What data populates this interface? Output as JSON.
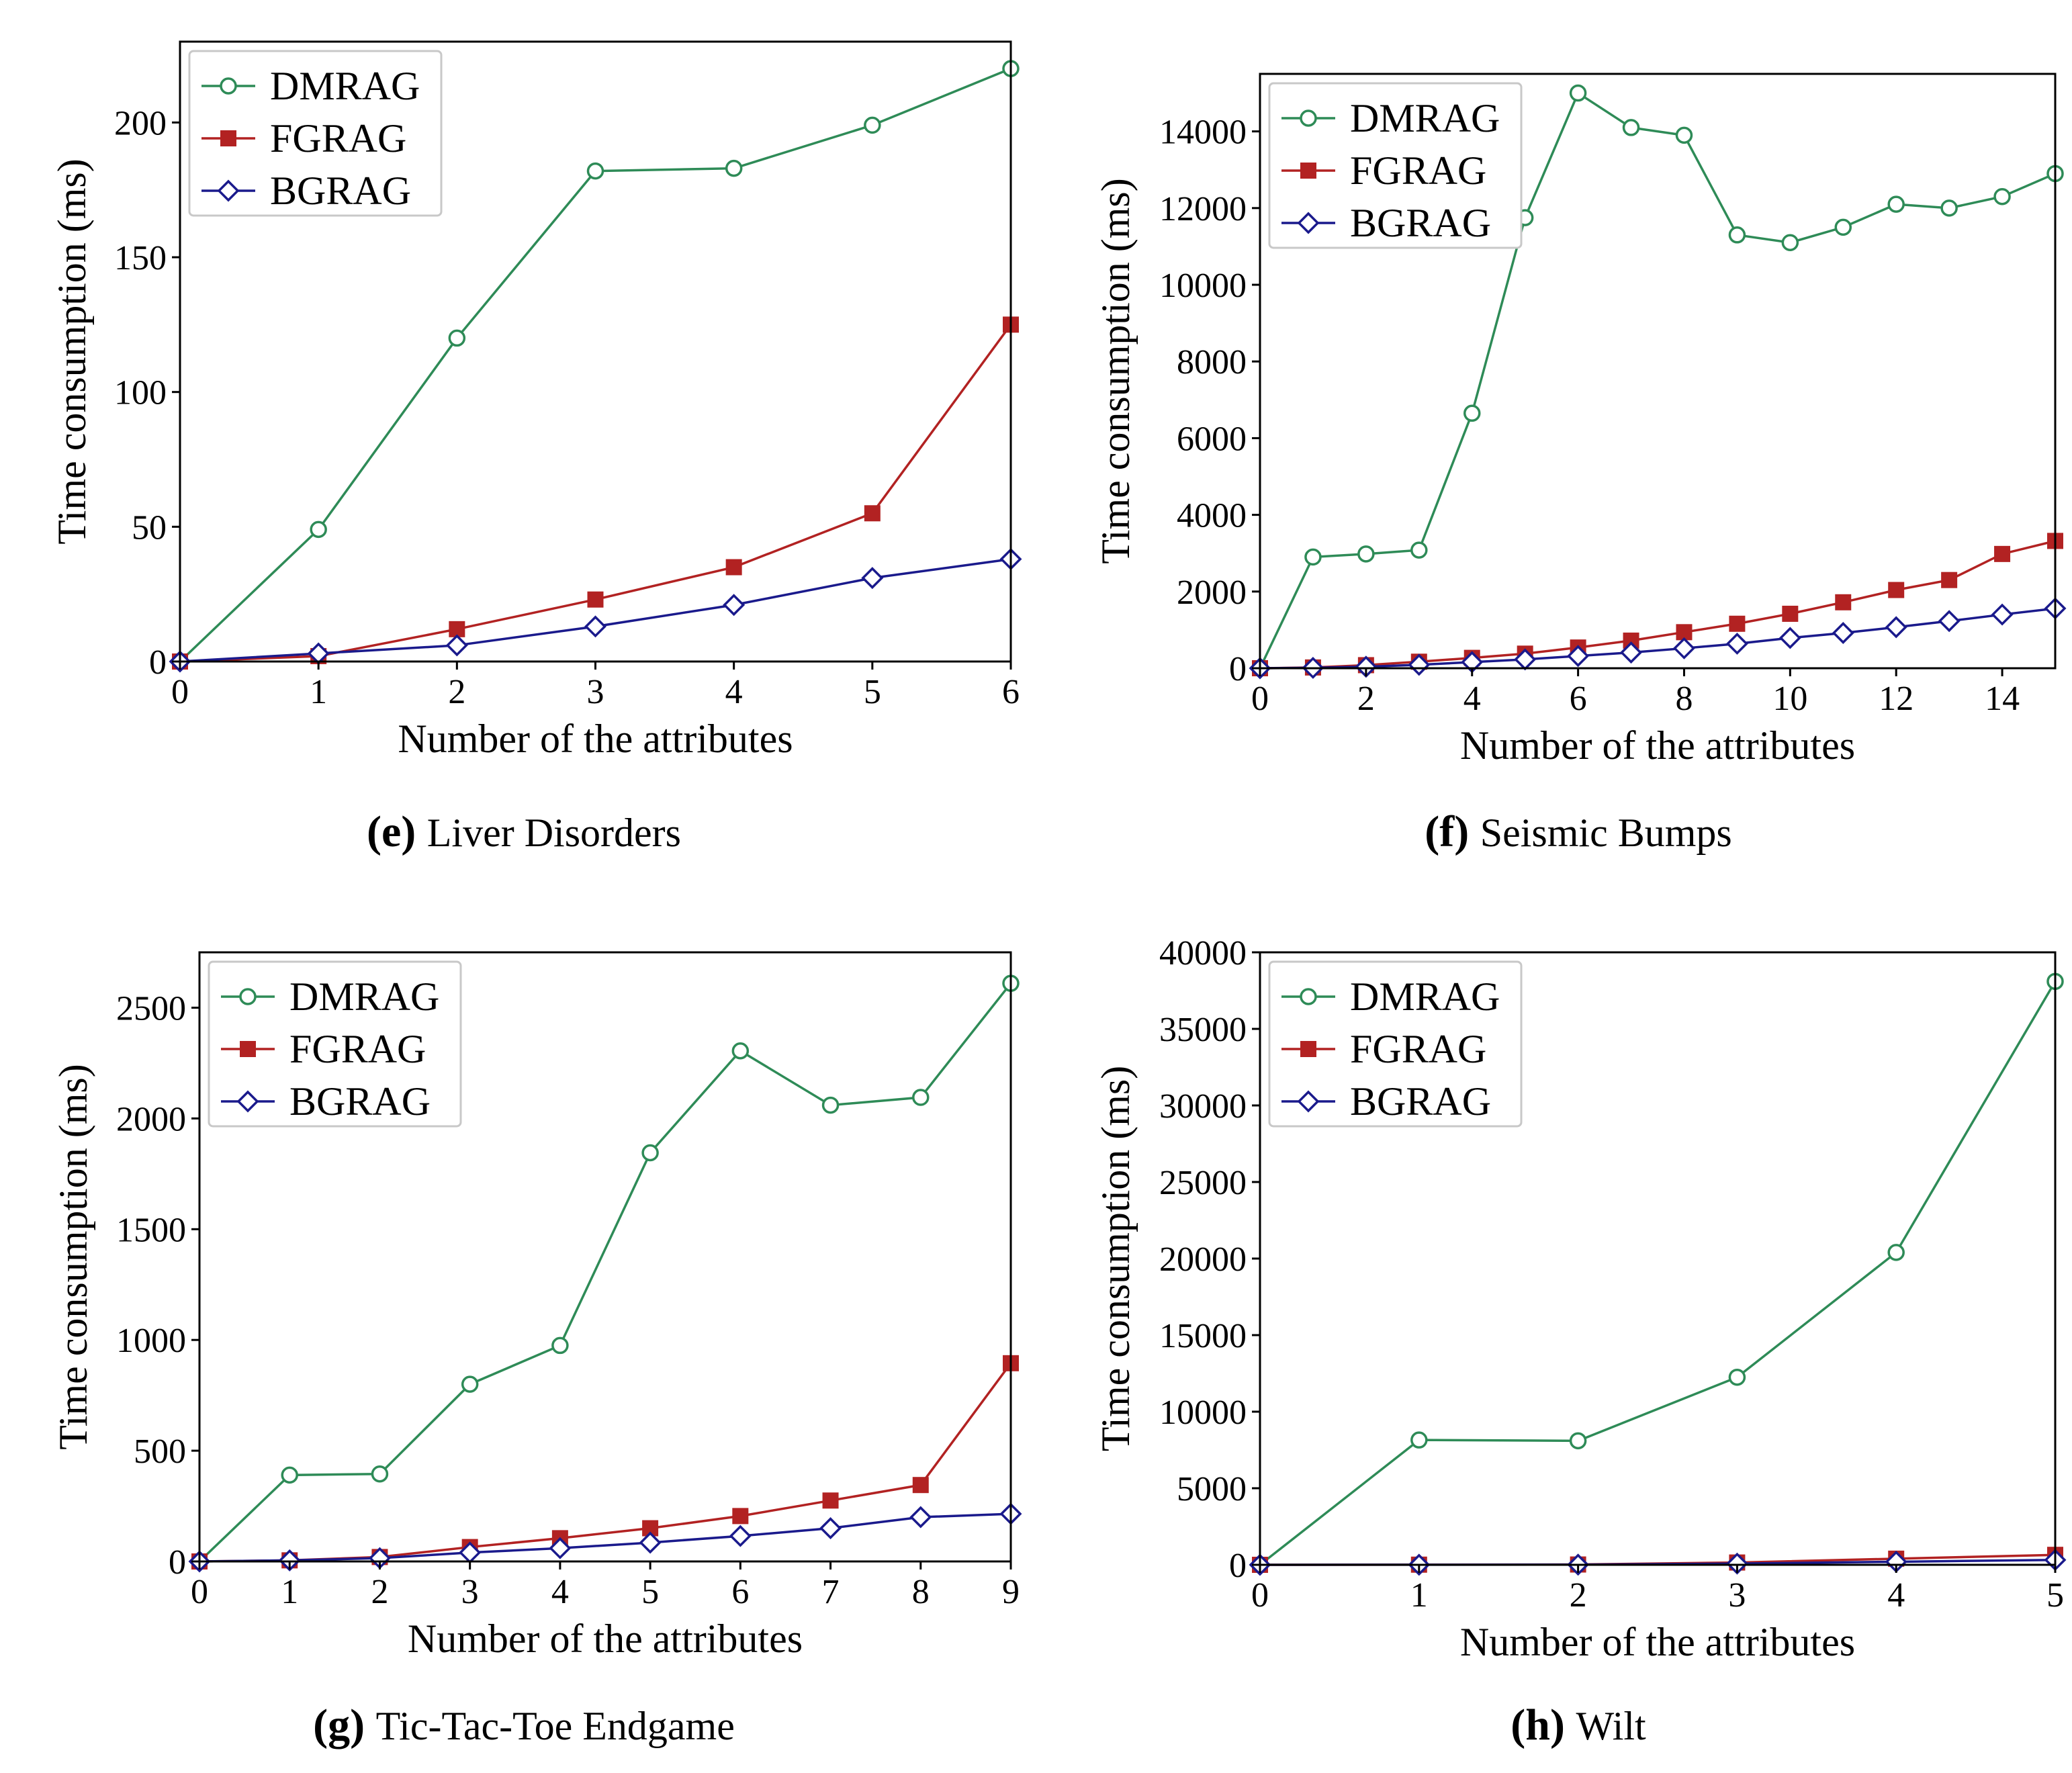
{
  "colors": {
    "DMRAG": "#2e8b57",
    "FGRAG": "#b22222",
    "BGRAG": "#1a1a8c"
  },
  "chart_data": [
    {
      "type": "line",
      "panel": "e",
      "caption_letter": "e",
      "caption": "Liver Disorders",
      "xlabel": "Number of the attributes",
      "ylabel": "Time consumption (ms)",
      "xlim": [
        0,
        6
      ],
      "ylim": [
        0,
        230
      ],
      "xticks": [
        0,
        1,
        2,
        3,
        4,
        5,
        6
      ],
      "yticks": [
        0,
        50,
        100,
        150,
        200
      ],
      "legend_position": "top-left",
      "x": [
        0,
        1,
        2,
        3,
        4,
        5,
        6
      ],
      "series": [
        {
          "name": "DMRAG",
          "marker": "circle",
          "values": [
            0,
            49,
            120,
            182,
            183,
            199,
            220
          ]
        },
        {
          "name": "FGRAG",
          "marker": "square",
          "values": [
            0,
            2,
            12,
            23,
            35,
            55,
            125
          ]
        },
        {
          "name": "BGRAG",
          "marker": "diamond",
          "values": [
            0,
            3,
            6,
            13,
            21,
            31,
            38
          ]
        }
      ]
    },
    {
      "type": "line",
      "panel": "f",
      "caption_letter": "f",
      "caption": "Seismic Bumps",
      "xlabel": "Number of the attributes",
      "ylabel": "Time consumption (ms)",
      "xlim": [
        0,
        15
      ],
      "ylim": [
        0,
        15500
      ],
      "xticks": [
        0,
        2,
        4,
        6,
        8,
        10,
        12,
        14
      ],
      "yticks": [
        0,
        2000,
        4000,
        6000,
        8000,
        10000,
        12000,
        14000
      ],
      "legend_position": "top-left",
      "x": [
        0,
        1,
        2,
        3,
        4,
        5,
        6,
        7,
        8,
        9,
        10,
        11,
        12,
        13,
        14,
        15
      ],
      "series": [
        {
          "name": "DMRAG",
          "marker": "circle",
          "values": [
            0,
            2900,
            2980,
            3080,
            6650,
            11750,
            15000,
            14100,
            13900,
            11300,
            11100,
            11500,
            12100,
            12000,
            12300,
            12900
          ]
        },
        {
          "name": "FGRAG",
          "marker": "square",
          "values": [
            0,
            20,
            80,
            170,
            270,
            380,
            540,
            720,
            940,
            1160,
            1420,
            1720,
            2040,
            2300,
            2980,
            3320
          ]
        },
        {
          "name": "BGRAG",
          "marker": "diamond",
          "values": [
            0,
            10,
            40,
            90,
            160,
            230,
            320,
            410,
            520,
            640,
            790,
            920,
            1070,
            1230,
            1400,
            1560
          ]
        }
      ]
    },
    {
      "type": "line",
      "panel": "g",
      "caption_letter": "g",
      "caption": "Tic-Tac-Toe Endgame",
      "xlabel": "Number of the attributes",
      "ylabel": "Time consumption (ms)",
      "xlim": [
        0,
        9
      ],
      "ylim": [
        0,
        2750
      ],
      "xticks": [
        0,
        1,
        2,
        3,
        4,
        5,
        6,
        7,
        8,
        9
      ],
      "yticks": [
        0,
        500,
        1000,
        1500,
        2000,
        2500
      ],
      "legend_position": "top-left",
      "x": [
        0,
        1,
        2,
        3,
        4,
        5,
        6,
        7,
        8,
        9
      ],
      "series": [
        {
          "name": "DMRAG",
          "marker": "circle",
          "values": [
            0,
            390,
            395,
            800,
            975,
            1845,
            2305,
            2060,
            2095,
            2610
          ]
        },
        {
          "name": "FGRAG",
          "marker": "square",
          "values": [
            0,
            5,
            20,
            65,
            105,
            150,
            205,
            275,
            345,
            895
          ]
        },
        {
          "name": "BGRAG",
          "marker": "diamond",
          "values": [
            0,
            5,
            15,
            40,
            60,
            85,
            115,
            150,
            200,
            215
          ]
        }
      ]
    },
    {
      "type": "line",
      "panel": "h",
      "caption_letter": "h",
      "caption": "Wilt",
      "xlabel": "Number of the attributes",
      "ylabel": "Time consumption (ms)",
      "xlim": [
        0,
        5
      ],
      "ylim": [
        0,
        40000
      ],
      "xticks": [
        0,
        1,
        2,
        3,
        4,
        5
      ],
      "yticks": [
        0,
        5000,
        10000,
        15000,
        20000,
        25000,
        30000,
        35000,
        40000
      ],
      "legend_position": "top-left",
      "x": [
        0,
        1,
        2,
        3,
        4,
        5
      ],
      "series": [
        {
          "name": "DMRAG",
          "marker": "circle",
          "values": [
            0,
            8150,
            8100,
            12250,
            20400,
            38100
          ]
        },
        {
          "name": "FGRAG",
          "marker": "square",
          "values": [
            0,
            10,
            20,
            150,
            400,
            650
          ]
        },
        {
          "name": "BGRAG",
          "marker": "diamond",
          "values": [
            0,
            5,
            10,
            80,
            200,
            320
          ]
        }
      ]
    }
  ]
}
